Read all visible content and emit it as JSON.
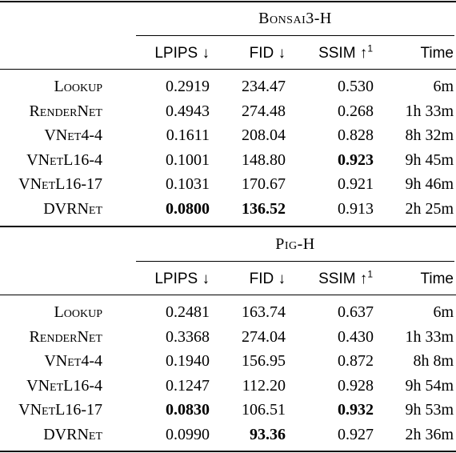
{
  "sections": [
    {
      "group_title": "Bonsai3-H",
      "headers": {
        "lpips": "LPIPS ↓",
        "fid": "FID ↓",
        "ssim": "SSIM ↑",
        "ssim_sup": "1",
        "time": "Time"
      },
      "rows": [
        {
          "method": "Lookup",
          "lpips": "0.2919",
          "fid": "234.47",
          "ssim": "0.530",
          "time": "6m",
          "bold": []
        },
        {
          "method": "RenderNet",
          "lpips": "0.4943",
          "fid": "274.48",
          "ssim": "0.268",
          "time": "1h 33m",
          "bold": []
        },
        {
          "method": "VNet4-4",
          "lpips": "0.1611",
          "fid": "208.04",
          "ssim": "0.828",
          "time": "8h 32m",
          "bold": []
        },
        {
          "method": "VNetL16-4",
          "lpips": "0.1001",
          "fid": "148.80",
          "ssim": "0.923",
          "time": "9h 45m",
          "bold": [
            "ssim"
          ]
        },
        {
          "method": "VNetL16-17",
          "lpips": "0.1031",
          "fid": "170.67",
          "ssim": "0.921",
          "time": "9h 46m",
          "bold": []
        },
        {
          "method": "DVRNet",
          "lpips": "0.0800",
          "fid": "136.52",
          "ssim": "0.913",
          "time": "2h 25m",
          "bold": [
            "lpips",
            "fid"
          ]
        }
      ]
    },
    {
      "group_title": "Pig-H",
      "headers": {
        "lpips": "LPIPS ↓",
        "fid": "FID ↓",
        "ssim": "SSIM ↑",
        "ssim_sup": "1",
        "time": "Time"
      },
      "rows": [
        {
          "method": "Lookup",
          "lpips": "0.2481",
          "fid": "163.74",
          "ssim": "0.637",
          "time": "6m",
          "bold": []
        },
        {
          "method": "RenderNet",
          "lpips": "0.3368",
          "fid": "274.04",
          "ssim": "0.430",
          "time": "1h 33m",
          "bold": []
        },
        {
          "method": "VNet4-4",
          "lpips": "0.1940",
          "fid": "156.95",
          "ssim": "0.872",
          "time": "8h 8m",
          "bold": []
        },
        {
          "method": "VNetL16-4",
          "lpips": "0.1247",
          "fid": "112.20",
          "ssim": "0.928",
          "time": "9h 54m",
          "bold": []
        },
        {
          "method": "VNetL16-17",
          "lpips": "0.0830",
          "fid": "106.51",
          "ssim": "0.932",
          "time": "9h 53m",
          "bold": [
            "lpips",
            "ssim"
          ]
        },
        {
          "method": "DVRNet",
          "lpips": "0.0990",
          "fid": "93.36",
          "ssim": "0.927",
          "time": "2h 36m",
          "bold": [
            "fid"
          ]
        }
      ]
    }
  ]
}
